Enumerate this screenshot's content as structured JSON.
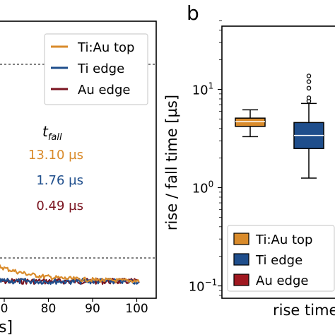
{
  "chart_data": [
    {
      "type": "line",
      "panel": "a (partial)",
      "xlabel": "s]",
      "x_ticks": [
        80,
        90,
        100
      ],
      "x_tick_partial": "0",
      "xlim": [
        68,
        101
      ],
      "series": [
        {
          "name": "Ti:Au top",
          "color": "#d98b2b",
          "t_fall": "13.10 µs"
        },
        {
          "name": "Ti edge",
          "color": "#1f4e8c",
          "t_fall": "1.76 µs"
        },
        {
          "name": "Au edge",
          "color": "#7a1420",
          "t_fall": "0.49 µs"
        }
      ],
      "annotation_title": "t",
      "annotation_subscript": "fall",
      "legend_position": "top-right"
    },
    {
      "type": "box",
      "panel_label": "b",
      "ylabel": "rise / fall time [µs]",
      "xlabel": "rise time",
      "yscale": "log",
      "ylim": [
        0.08,
        50
      ],
      "y_ticks": [
        {
          "base": "10",
          "exp": "1",
          "value": 10
        },
        {
          "base": "10",
          "exp": "0",
          "value": 1
        },
        {
          "base": "10",
          "exp": "−1",
          "value": 0.1
        }
      ],
      "boxes": [
        {
          "name": "Ti:Au top",
          "color": "#d98b2b",
          "whisker_low": 3.3,
          "q1": 4.2,
          "median": 4.7,
          "q3": 5.1,
          "whisker_high": 6.2,
          "outliers": []
        },
        {
          "name": "Ti edge",
          "color": "#1f4e8c",
          "whisker_low": 1.25,
          "q1": 2.5,
          "median": 3.4,
          "q3": 4.6,
          "whisker_high": 7.2,
          "outliers": [
            7.6,
            8.2,
            10.3,
            12.0,
            13.7
          ]
        }
      ],
      "legend": [
        {
          "name": "Ti:Au top",
          "color": "#d98b2b"
        },
        {
          "name": "Ti edge",
          "color": "#1f4e8c"
        },
        {
          "name": "Au edge",
          "color": "#a01820"
        }
      ],
      "legend_position": "bottom"
    }
  ]
}
